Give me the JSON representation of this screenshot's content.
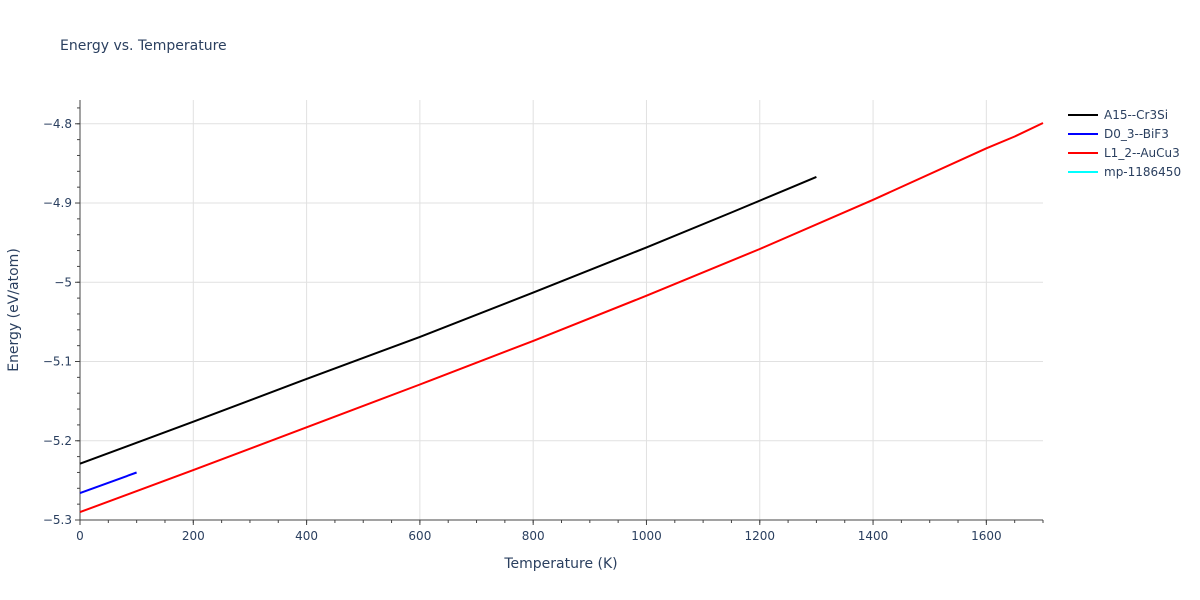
{
  "chart_data": {
    "type": "line",
    "title": "Energy vs. Temperature",
    "xlabel": "Temperature (K)",
    "ylabel": "Energy (eV/atom)",
    "xlim": [
      0,
      1700
    ],
    "ylim": [
      -5.3,
      -4.77
    ],
    "x_ticks": [
      0,
      200,
      400,
      600,
      800,
      1000,
      1200,
      1400,
      1600
    ],
    "x_tick_labels": [
      "0",
      "200",
      "400",
      "600",
      "800",
      "1000",
      "1200",
      "1400",
      "1600"
    ],
    "y_ticks": [
      -5.3,
      -5.2,
      -5.1,
      -5.0,
      -4.9,
      -4.8
    ],
    "y_tick_labels": [
      "−5.3",
      "−5.2",
      "−5.1",
      "−5",
      "−4.9",
      "−4.8"
    ],
    "grid": true,
    "legend_position": "top-right",
    "series": [
      {
        "name": "A15--Cr3Si",
        "color": "#000000",
        "x": [
          0,
          200,
          400,
          600,
          800,
          1000,
          1150,
          1250,
          1300
        ],
        "y": [
          -5.229,
          -5.176,
          -5.122,
          -5.069,
          -5.013,
          -4.956,
          -4.912,
          -4.882,
          -4.867
        ]
      },
      {
        "name": "D0_3--BiF3",
        "color": "#0000ff",
        "x": [
          0,
          100
        ],
        "y": [
          -5.266,
          -5.24
        ]
      },
      {
        "name": "L1_2--AuCu3",
        "color": "#ff0000",
        "x": [
          0,
          200,
          400,
          600,
          800,
          1000,
          1200,
          1400,
          1600,
          1650,
          1700
        ],
        "y": [
          -5.29,
          -5.237,
          -5.183,
          -5.129,
          -5.074,
          -5.017,
          -4.958,
          -4.896,
          -4.831,
          -4.816,
          -4.799
        ]
      },
      {
        "name": "mp-1186450",
        "color": "#00ffff",
        "x": [],
        "y": []
      }
    ]
  }
}
